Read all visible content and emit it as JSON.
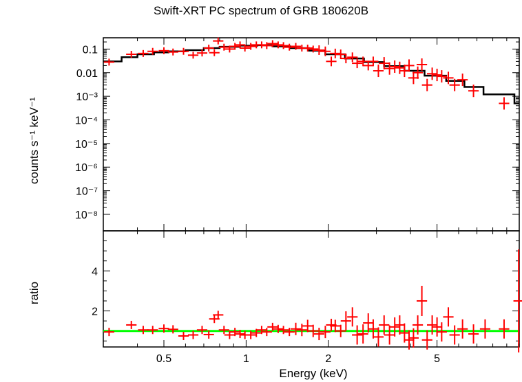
{
  "chart_data": [
    {
      "type": "scatter",
      "title": "Swift-XRT PC spectrum of GRB 180620B",
      "ylabel": "counts s⁻¹ keV⁻¹",
      "xlabel": "Energy (keV)",
      "xscale": "log",
      "yscale": "log",
      "xlim": [
        0.3,
        10
      ],
      "ylim": [
        2e-09,
        0.3
      ],
      "y_ticks": [
        "0.1",
        "0.01",
        "10⁻³",
        "10⁻⁴",
        "10⁻⁵",
        "10⁻⁶",
        "10⁻⁷",
        "10⁻⁸"
      ],
      "series": [
        {
          "kind": "data",
          "color": "#ff0000",
          "points": [
            {
              "x": 0.315,
              "y": 0.028
            },
            {
              "x": 0.38,
              "y": 0.06
            },
            {
              "x": 0.42,
              "y": 0.065
            },
            {
              "x": 0.455,
              "y": 0.08
            },
            {
              "x": 0.5,
              "y": 0.085
            },
            {
              "x": 0.54,
              "y": 0.075
            },
            {
              "x": 0.59,
              "y": 0.08
            },
            {
              "x": 0.64,
              "y": 0.055
            },
            {
              "x": 0.69,
              "y": 0.068
            },
            {
              "x": 0.73,
              "y": 0.11
            },
            {
              "x": 0.765,
              "y": 0.07
            },
            {
              "x": 0.79,
              "y": 0.22
            },
            {
              "x": 0.83,
              "y": 0.12
            },
            {
              "x": 0.87,
              "y": 0.1
            },
            {
              "x": 0.91,
              "y": 0.13
            },
            {
              "x": 0.95,
              "y": 0.15
            },
            {
              "x": 0.99,
              "y": 0.11
            },
            {
              "x": 1.04,
              "y": 0.13
            },
            {
              "x": 1.09,
              "y": 0.15
            },
            {
              "x": 1.14,
              "y": 0.15
            },
            {
              "x": 1.19,
              "y": 0.14
            },
            {
              "x": 1.25,
              "y": 0.17
            },
            {
              "x": 1.31,
              "y": 0.15
            },
            {
              "x": 1.37,
              "y": 0.14
            },
            {
              "x": 1.44,
              "y": 0.12
            },
            {
              "x": 1.52,
              "y": 0.13
            },
            {
              "x": 1.6,
              "y": 0.11
            },
            {
              "x": 1.68,
              "y": 0.11
            },
            {
              "x": 1.76,
              "y": 0.1
            },
            {
              "x": 1.85,
              "y": 0.09
            },
            {
              "x": 1.95,
              "y": 0.08
            },
            {
              "x": 2.05,
              "y": 0.03
            },
            {
              "x": 2.12,
              "y": 0.065
            },
            {
              "x": 2.22,
              "y": 0.06
            },
            {
              "x": 2.32,
              "y": 0.04
            },
            {
              "x": 2.45,
              "y": 0.045
            },
            {
              "x": 2.55,
              "y": 0.025
            },
            {
              "x": 2.68,
              "y": 0.03
            },
            {
              "x": 2.8,
              "y": 0.02
            },
            {
              "x": 2.92,
              "y": 0.03
            },
            {
              "x": 3.05,
              "y": 0.012
            },
            {
              "x": 3.2,
              "y": 0.025
            },
            {
              "x": 3.35,
              "y": 0.015
            },
            {
              "x": 3.5,
              "y": 0.018
            },
            {
              "x": 3.65,
              "y": 0.016
            },
            {
              "x": 3.8,
              "y": 0.012
            },
            {
              "x": 3.95,
              "y": 0.02
            },
            {
              "x": 4.1,
              "y": 0.006
            },
            {
              "x": 4.25,
              "y": 0.01
            },
            {
              "x": 4.4,
              "y": 0.022
            },
            {
              "x": 4.6,
              "y": 0.003
            },
            {
              "x": 4.8,
              "y": 0.009
            },
            {
              "x": 5.0,
              "y": 0.008
            },
            {
              "x": 5.2,
              "y": 0.007
            },
            {
              "x": 5.5,
              "y": 0.006
            },
            {
              "x": 5.8,
              "y": 0.003
            },
            {
              "x": 6.2,
              "y": 0.005
            },
            {
              "x": 6.8,
              "y": 0.0017
            },
            {
              "x": 8.8,
              "y": 0.0005
            }
          ]
        },
        {
          "kind": "model",
          "color": "#000000",
          "steps": [
            {
              "x0": 0.3,
              "x1": 0.35,
              "y": 0.03
            },
            {
              "x0": 0.35,
              "x1": 0.4,
              "y": 0.045
            },
            {
              "x0": 0.4,
              "x1": 0.46,
              "y": 0.06
            },
            {
              "x0": 0.46,
              "x1": 0.52,
              "y": 0.072
            },
            {
              "x0": 0.52,
              "x1": 0.6,
              "y": 0.08
            },
            {
              "x0": 0.6,
              "x1": 0.7,
              "y": 0.09
            },
            {
              "x0": 0.7,
              "x1": 0.8,
              "y": 0.11
            },
            {
              "x0": 0.8,
              "x1": 0.95,
              "y": 0.125
            },
            {
              "x0": 0.95,
              "x1": 1.1,
              "y": 0.14
            },
            {
              "x0": 1.1,
              "x1": 1.25,
              "y": 0.145
            },
            {
              "x0": 1.25,
              "x1": 1.45,
              "y": 0.13
            },
            {
              "x0": 1.45,
              "x1": 1.7,
              "y": 0.11
            },
            {
              "x0": 1.7,
              "x1": 1.95,
              "y": 0.085
            },
            {
              "x0": 1.95,
              "x1": 2.3,
              "y": 0.06
            },
            {
              "x0": 2.3,
              "x1": 2.7,
              "y": 0.04
            },
            {
              "x0": 2.7,
              "x1": 3.2,
              "y": 0.028
            },
            {
              "x0": 3.2,
              "x1": 3.8,
              "y": 0.019
            },
            {
              "x0": 3.8,
              "x1": 4.5,
              "y": 0.012
            },
            {
              "x0": 4.5,
              "x1": 5.4,
              "y": 0.0075
            },
            {
              "x0": 5.4,
              "x1": 6.3,
              "y": 0.0045
            },
            {
              "x0": 6.3,
              "x1": 7.4,
              "y": 0.0025
            },
            {
              "x0": 7.4,
              "x1": 9.6,
              "y": 0.0012
            },
            {
              "x0": 9.6,
              "x1": 10.0,
              "y": 0.0005
            }
          ]
        }
      ]
    },
    {
      "type": "scatter",
      "ylabel": "ratio",
      "xlabel": "Energy (keV)",
      "xscale": "log",
      "xlim": [
        0.3,
        10
      ],
      "ylim": [
        0.2,
        6
      ],
      "y_ticks": [
        "2",
        "4"
      ],
      "x_ticks": [
        "0.5",
        "1",
        "2",
        "5"
      ],
      "reference_line": {
        "y": 1,
        "color": "#00ff00"
      },
      "series": [
        {
          "kind": "data",
          "color": "#ff0000",
          "points": [
            {
              "x": 0.315,
              "y": 0.95
            },
            {
              "x": 0.38,
              "y": 1.3
            },
            {
              "x": 0.42,
              "y": 1.05
            },
            {
              "x": 0.455,
              "y": 1.05
            },
            {
              "x": 0.5,
              "y": 1.12
            },
            {
              "x": 0.54,
              "y": 1.08
            },
            {
              "x": 0.59,
              "y": 0.75
            },
            {
              "x": 0.64,
              "y": 0.8
            },
            {
              "x": 0.69,
              "y": 1.05
            },
            {
              "x": 0.73,
              "y": 0.82
            },
            {
              "x": 0.765,
              "y": 1.6
            },
            {
              "x": 0.79,
              "y": 1.8
            },
            {
              "x": 0.83,
              "y": 1.05
            },
            {
              "x": 0.87,
              "y": 0.8
            },
            {
              "x": 0.91,
              "y": 0.95
            },
            {
              "x": 0.95,
              "y": 0.85
            },
            {
              "x": 0.99,
              "y": 0.8
            },
            {
              "x": 1.04,
              "y": 0.8
            },
            {
              "x": 1.09,
              "y": 0.9
            },
            {
              "x": 1.14,
              "y": 1.05
            },
            {
              "x": 1.19,
              "y": 0.95
            },
            {
              "x": 1.25,
              "y": 1.2
            },
            {
              "x": 1.31,
              "y": 1.1
            },
            {
              "x": 1.37,
              "y": 1.05
            },
            {
              "x": 1.44,
              "y": 0.95
            },
            {
              "x": 1.52,
              "y": 1.1
            },
            {
              "x": 1.6,
              "y": 1.05
            },
            {
              "x": 1.68,
              "y": 1.25
            },
            {
              "x": 1.76,
              "y": 1.0
            },
            {
              "x": 1.85,
              "y": 0.85
            },
            {
              "x": 1.95,
              "y": 0.95
            },
            {
              "x": 2.05,
              "y": 1.3
            },
            {
              "x": 2.12,
              "y": 1.25
            },
            {
              "x": 2.22,
              "y": 1.0
            },
            {
              "x": 2.32,
              "y": 1.5
            },
            {
              "x": 2.45,
              "y": 1.7
            },
            {
              "x": 2.55,
              "y": 0.8
            },
            {
              "x": 2.68,
              "y": 0.85
            },
            {
              "x": 2.8,
              "y": 1.4
            },
            {
              "x": 2.92,
              "y": 1.1
            },
            {
              "x": 3.05,
              "y": 0.7
            },
            {
              "x": 3.2,
              "y": 1.3
            },
            {
              "x": 3.35,
              "y": 0.8
            },
            {
              "x": 3.5,
              "y": 1.2
            },
            {
              "x": 3.65,
              "y": 1.3
            },
            {
              "x": 3.8,
              "y": 0.9
            },
            {
              "x": 3.95,
              "y": 0.55
            },
            {
              "x": 4.1,
              "y": 0.65
            },
            {
              "x": 4.25,
              "y": 1.3
            },
            {
              "x": 4.4,
              "y": 2.5
            },
            {
              "x": 4.6,
              "y": 0.55
            },
            {
              "x": 4.8,
              "y": 1.3
            },
            {
              "x": 5.0,
              "y": 1.2
            },
            {
              "x": 5.2,
              "y": 0.95
            },
            {
              "x": 5.5,
              "y": 1.7
            },
            {
              "x": 5.8,
              "y": 0.8
            },
            {
              "x": 6.2,
              "y": 1.1
            },
            {
              "x": 6.8,
              "y": 0.85
            },
            {
              "x": 7.5,
              "y": 1.1
            },
            {
              "x": 8.8,
              "y": 1.1
            },
            {
              "x": 9.95,
              "y": 2.5
            }
          ]
        }
      ]
    }
  ]
}
